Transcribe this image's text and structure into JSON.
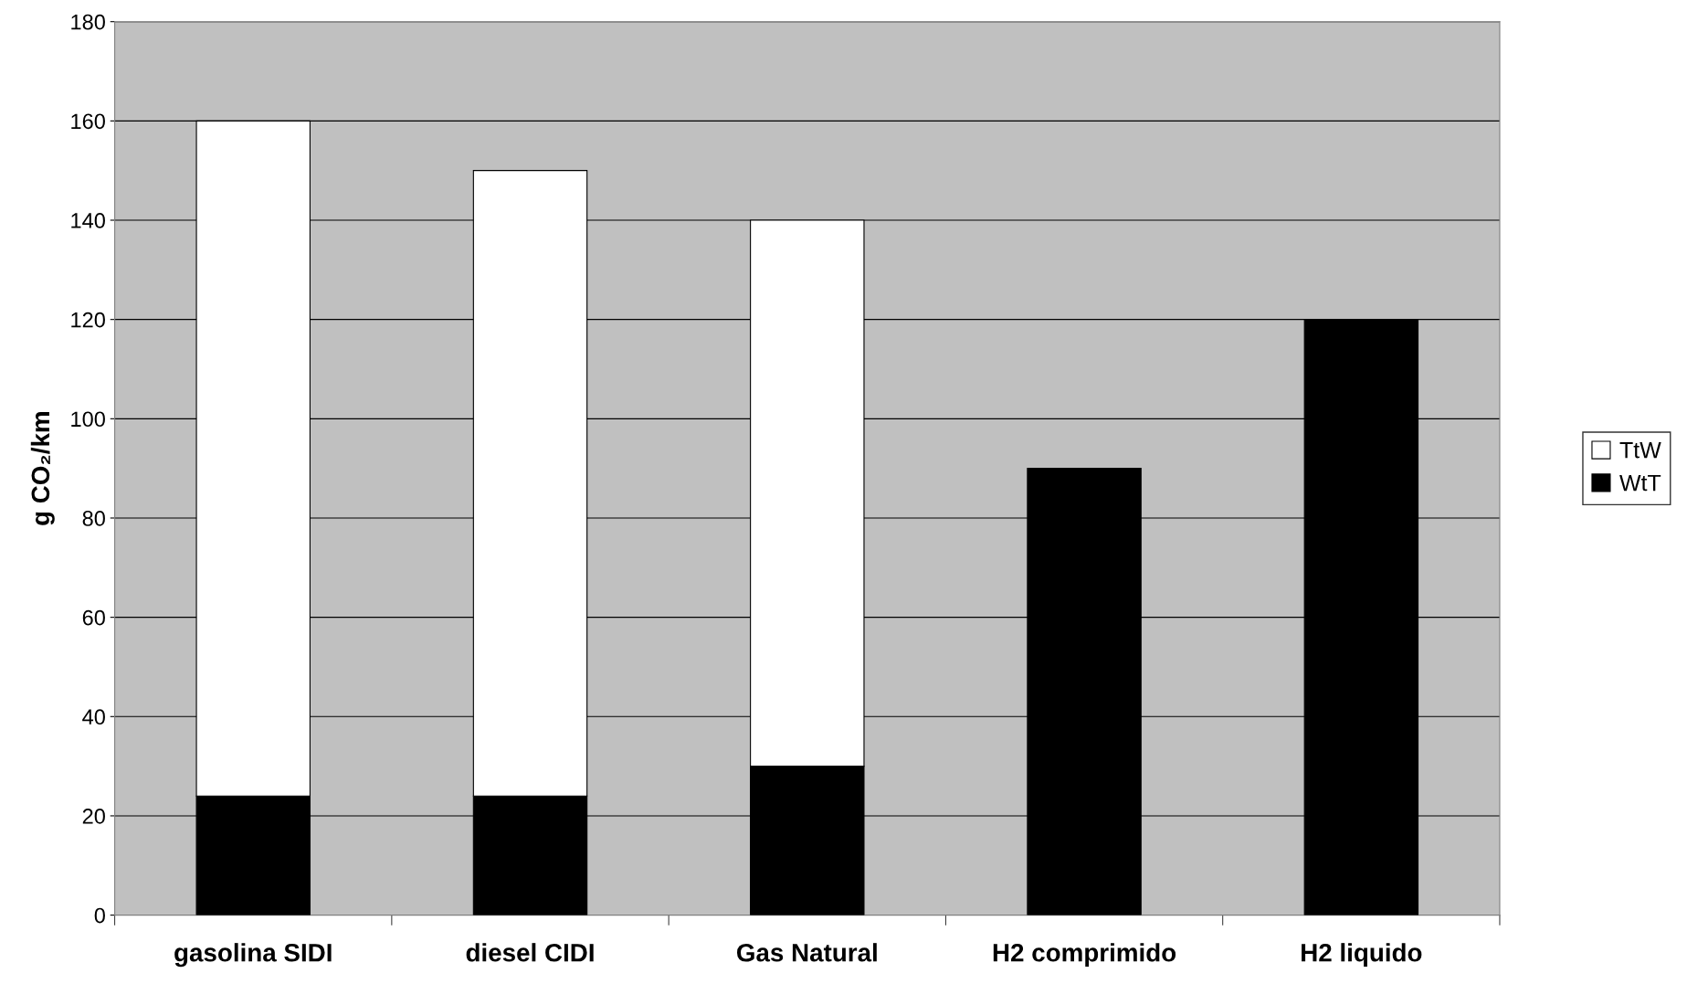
{
  "chart_data": {
    "type": "bar",
    "stacked": true,
    "ylabel": "g CO₂/km",
    "categories": [
      "gasolina SIDI",
      "diesel CIDI",
      "Gas Natural",
      "H2 comprimido",
      "H2 liquido"
    ],
    "series": [
      {
        "name": "WtT",
        "color": "#000000",
        "values": [
          24,
          24,
          30,
          90,
          120
        ]
      },
      {
        "name": "TtW",
        "color": "#ffffff",
        "values": [
          136,
          126,
          110,
          null,
          null
        ]
      }
    ],
    "ylim": [
      0,
      180
    ],
    "yticks": [
      0,
      20,
      40,
      60,
      80,
      100,
      120,
      140,
      160,
      180
    ],
    "grid": "y",
    "legend": "right"
  }
}
